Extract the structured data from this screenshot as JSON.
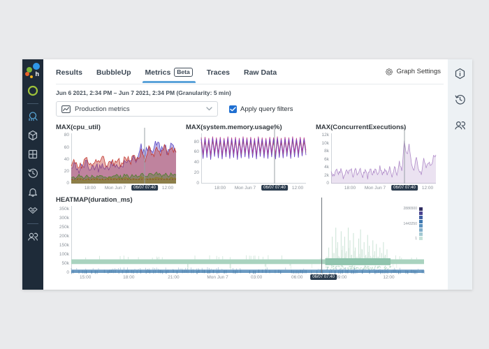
{
  "app": {
    "logo_letter": "h"
  },
  "sidebar": {
    "bg": "#1e2b39",
    "icons": [
      "logo",
      "environment-ring-icon",
      "query-icon",
      "dataset-hexagon-icon",
      "boards-grid-icon",
      "activity-history-icon",
      "triggers-bell-icon",
      "slos-hands-icon",
      "team-icon"
    ]
  },
  "header": {
    "tabs": [
      {
        "label": "Results",
        "active": false
      },
      {
        "label": "BubbleUp",
        "active": false
      },
      {
        "label": "Metrics",
        "badge": "Beta",
        "active": true
      },
      {
        "label": "Traces",
        "active": false
      },
      {
        "label": "Raw Data",
        "active": false
      }
    ],
    "graph_settings_label": "Graph Settings"
  },
  "toolbar": {
    "date_range": "Jun 6 2021, 2:34 PM – Jun 7 2021, 2:34 PM (Granularity: 5 min)",
    "metrics_dropdown_value": "Production metrics",
    "apply_filters_label": "Apply query filters",
    "apply_filters_checked": true
  },
  "right_rail": {
    "icons": [
      "info-hexagon-icon",
      "history-icon",
      "team-icon"
    ]
  },
  "colors": {
    "accent_blue": "#5ba3d9",
    "checkbox_blue": "#1f6fd1",
    "badge_dark": "#2a3b4d",
    "sidebar_bg": "#1e2b39",
    "crosshair": "#9aa0a6"
  },
  "crosshair_time": "06/07 07:40",
  "chart_data": [
    {
      "type": "line",
      "title": "MAX(cpu_util)",
      "ymax": 84,
      "yticks": [
        [
          0,
          "0"
        ],
        [
          20,
          "20"
        ],
        [
          40,
          "40"
        ],
        [
          60,
          "60"
        ],
        [
          80,
          "80"
        ]
      ],
      "xticks": [
        {
          "label": "18:00",
          "f": 0.18
        },
        {
          "label": "Mon Jun 7",
          "f": 0.42
        },
        {
          "label": "06/07 07:40",
          "f": 0.7,
          "badge": true
        },
        {
          "label": "12:00",
          "f": 0.92
        }
      ],
      "crosshair_f": 0.7,
      "series": [
        {
          "name": "cpu-purple",
          "color": "#5a47c4",
          "up": 3,
          "jitter": 8,
          "fillOp": 0.4,
          "values": [
            24,
            32,
            21,
            29,
            35,
            23,
            31,
            26,
            37,
            25,
            33,
            28,
            35,
            27,
            41,
            32,
            50,
            38,
            60,
            46,
            68,
            52,
            71,
            56,
            64,
            49,
            67,
            53
          ]
        },
        {
          "name": "cpu-red",
          "color": "#c23a32",
          "up": 3,
          "jitter": 7,
          "fillOp": 0.4,
          "values": [
            31,
            39,
            27,
            35,
            43,
            29,
            37,
            32,
            45,
            30,
            38,
            34,
            41,
            31,
            47,
            36,
            44,
            38,
            52,
            40,
            58,
            46,
            64,
            50,
            60,
            47,
            63,
            52
          ]
        },
        {
          "name": "cpu-green",
          "color": "#4f7d2e",
          "up": 3,
          "jitter": 3,
          "fillOp": 0.45,
          "values": [
            12,
            9,
            13,
            10,
            14,
            11,
            12,
            10,
            13,
            9,
            14,
            11,
            13,
            10,
            15,
            11,
            14,
            12,
            16,
            12,
            15,
            13,
            17,
            13,
            16,
            12,
            17,
            14
          ]
        },
        {
          "name": "cpu-olive",
          "color": "#8f7f22",
          "up": 3,
          "jitter": 2,
          "fillOp": 0.45,
          "values": [
            8,
            6,
            9,
            7,
            8,
            6,
            9,
            7,
            8,
            6,
            9,
            7,
            8,
            6,
            9,
            7,
            9,
            7,
            10,
            8,
            9,
            7,
            10,
            8,
            9,
            7,
            10,
            8
          ]
        },
        {
          "name": "cpu-maroon-dashed",
          "color": "#8e2f2f",
          "up": 1,
          "jitter": 0,
          "dash": "2,2",
          "values": [
            7,
            7,
            7,
            7,
            7,
            7,
            7,
            7
          ]
        }
      ]
    },
    {
      "type": "line",
      "title": "MAX(system.memory.usage%)",
      "ymax": 97,
      "yticks": [
        [
          0,
          "0"
        ],
        [
          20,
          "20"
        ],
        [
          40,
          "40"
        ],
        [
          60,
          "60"
        ],
        [
          80,
          "80"
        ]
      ],
      "xticks": [
        {
          "label": "18:00",
          "f": 0.18
        },
        {
          "label": "Mon Jun 7",
          "f": 0.42
        },
        {
          "label": "06/07 07:40",
          "f": 0.7,
          "badge": true
        },
        {
          "label": "12:00",
          "f": 0.92
        }
      ],
      "crosshair_f": 0.7,
      "series": [
        {
          "name": "mem-orange",
          "color": "#d98032",
          "up": 1,
          "jitter": 0,
          "values": [
            80,
            55,
            81,
            57,
            79,
            53,
            82,
            58,
            80,
            56,
            81,
            54,
            79,
            57,
            82,
            55,
            80,
            57,
            81,
            53,
            79,
            56,
            82,
            58,
            80,
            55,
            81,
            57,
            79,
            54,
            82,
            58,
            80,
            56,
            79,
            55,
            81,
            57,
            80,
            54,
            82,
            57,
            79,
            56,
            81,
            58,
            80,
            55,
            82,
            58,
            79,
            57,
            81,
            59,
            80,
            60
          ]
        },
        {
          "name": "mem-magenta",
          "color": "#c2458f",
          "up": 1,
          "jitter": 0,
          "values": [
            89,
            58,
            90,
            60,
            88,
            56,
            91,
            62,
            89,
            59,
            90,
            57,
            88,
            61,
            91,
            58,
            89,
            60,
            90,
            56,
            88,
            59,
            91,
            61,
            89,
            58,
            90,
            60,
            88,
            57,
            91,
            62,
            89,
            59,
            88,
            58,
            90,
            61,
            89,
            57,
            91,
            60,
            88,
            59,
            90,
            62,
            89,
            58,
            91,
            61,
            88,
            60,
            90,
            63,
            89,
            64
          ]
        },
        {
          "name": "mem-purple",
          "color": "#6a3fc0",
          "up": 1,
          "jitter": 0,
          "values": [
            86,
            48,
            87,
            50,
            85,
            46,
            88,
            52,
            86,
            49,
            87,
            47,
            85,
            51,
            88,
            48,
            86,
            50,
            87,
            46,
            85,
            49,
            88,
            51,
            86,
            48,
            87,
            50,
            85,
            47,
            88,
            52,
            86,
            49,
            85,
            48,
            87,
            51,
            86,
            47,
            88,
            50,
            85,
            49,
            87,
            52,
            86,
            48,
            88,
            51,
            85,
            50,
            87,
            53,
            86,
            55
          ]
        }
      ]
    },
    {
      "type": "line",
      "title": "MAX(ConcurrentExecutions)",
      "ymax": 12600,
      "yticks": [
        [
          0,
          "0"
        ],
        [
          2000,
          "2k"
        ],
        [
          4000,
          "4k"
        ],
        [
          6000,
          "6k"
        ],
        [
          8000,
          "8k"
        ],
        [
          10000,
          "10k"
        ],
        [
          12000,
          "12k"
        ]
      ],
      "xticks": [
        {
          "label": "18:00",
          "f": 0.18
        },
        {
          "label": "Mon Jun 7",
          "f": 0.42
        },
        {
          "label": "06/07 07:40",
          "f": 0.7,
          "badge": true
        },
        {
          "label": "12:00",
          "f": 0.92
        }
      ],
      "crosshair_f": 0.7,
      "series": [
        {
          "name": "concurrent-purple",
          "color": "#b08cc9",
          "up": 3,
          "jitter": 550,
          "fillOp": 0.25,
          "values": [
            3200,
            1800,
            3500,
            2200,
            3800,
            1500,
            3300,
            2600,
            3900,
            1700,
            3400,
            2300,
            3700,
            2000,
            3500,
            1600,
            3800,
            2400,
            3600,
            1900,
            4200,
            2100,
            3500,
            2500,
            3900,
            1800,
            4300,
            2600,
            5200,
            3000,
            10500,
            7200,
            9600,
            4800,
            2800,
            6800,
            3400,
            2200,
            6500,
            3800,
            5400,
            4600,
            6800,
            7200
          ]
        }
      ]
    },
    {
      "type": "heatmap",
      "title": "HEATMAP(duration_ms)",
      "ymax": 370000,
      "yticks": [
        [
          0,
          "0"
        ],
        [
          50000,
          "50k"
        ],
        [
          100000,
          "100k"
        ],
        [
          150000,
          "150k"
        ],
        [
          200000,
          "200k"
        ],
        [
          250000,
          "250k"
        ],
        [
          300000,
          "300k"
        ],
        [
          350000,
          "350k"
        ]
      ],
      "xticks": [
        {
          "label": "15:00",
          "f": 0.04
        },
        {
          "label": "18:00",
          "f": 0.163
        },
        {
          "label": "21:00",
          "f": 0.29
        },
        {
          "label": "Mon Jun 7",
          "f": 0.415
        },
        {
          "label": "03:00",
          "f": 0.525
        },
        {
          "label": "06:00",
          "f": 0.64
        },
        {
          "label": "06/07 07:40",
          "f": 0.715,
          "badge": true
        },
        {
          "label": "09:00",
          "f": 0.765
        },
        {
          "label": "12:00",
          "f": 0.9
        }
      ],
      "crosshair_f": 0.71,
      "band": {
        "value": 62000,
        "half": 13000,
        "color": "#a9d3bf",
        "highlight": {
          "f0": 0.72,
          "f1": 0.905,
          "color": "#8fc4ad"
        }
      },
      "base_band": {
        "value": 18000,
        "color": "#6b9ac2",
        "tick_color": "#4a7da8"
      },
      "spike_color": "#b7d8c6",
      "spikes": [
        [
          0.33,
          30000
        ],
        [
          0.45,
          25000
        ],
        [
          0.55,
          35000
        ],
        [
          0.62,
          40000
        ],
        [
          0.68,
          50000
        ],
        [
          0.725,
          90000
        ],
        [
          0.73,
          140000
        ],
        [
          0.735,
          60000
        ],
        [
          0.74,
          200000
        ],
        [
          0.745,
          110000
        ],
        [
          0.75,
          250000
        ],
        [
          0.755,
          170000
        ],
        [
          0.76,
          90000
        ],
        [
          0.765,
          230000
        ],
        [
          0.77,
          150000
        ],
        [
          0.775,
          200000
        ],
        [
          0.78,
          120000
        ],
        [
          0.785,
          250000
        ],
        [
          0.79,
          180000
        ],
        [
          0.795,
          100000
        ],
        [
          0.8,
          220000
        ],
        [
          0.805,
          140000
        ],
        [
          0.81,
          90000
        ],
        [
          0.815,
          190000
        ],
        [
          0.82,
          240000
        ],
        [
          0.825,
          130000
        ],
        [
          0.83,
          170000
        ],
        [
          0.835,
          100000
        ],
        [
          0.84,
          210000
        ],
        [
          0.845,
          150000
        ],
        [
          0.85,
          80000
        ],
        [
          0.855,
          180000
        ],
        [
          0.86,
          120000
        ],
        [
          0.865,
          160000
        ],
        [
          0.87,
          90000
        ],
        [
          0.875,
          140000
        ],
        [
          0.88,
          110000
        ],
        [
          0.885,
          170000
        ],
        [
          0.89,
          100000
        ],
        [
          0.895,
          130000
        ],
        [
          0.9,
          80000
        ],
        [
          0.91,
          60000
        ],
        [
          0.92,
          50000
        ]
      ],
      "legend": {
        "colors": [
          "#312e62",
          "#4a4490",
          "#3f5fa3",
          "#3f78b0",
          "#5c92bf",
          "#80aecb",
          "#a3c9d2",
          "#c6e2da"
        ],
        "top_label": "2886500",
        "mid_label": "1443250",
        "bottom_label": "1"
      }
    }
  ]
}
